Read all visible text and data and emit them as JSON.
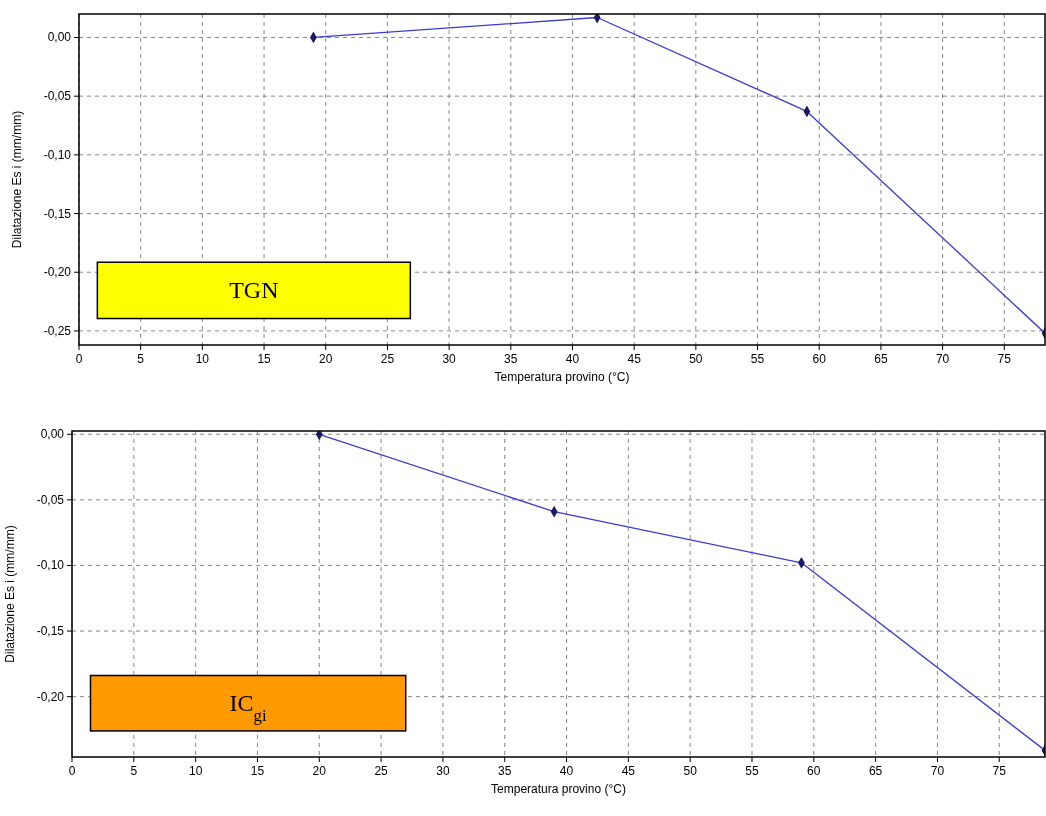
{
  "chart_data": [
    {
      "type": "line",
      "xlabel": "Temperatura provino (°C)",
      "ylabel": "Dilatazione Es i (mm/mm)",
      "annotations": [
        "TGN"
      ],
      "x": [
        19,
        42,
        59,
        78.3
      ],
      "series": [
        {
          "color": "#3a3ad0",
          "values": [
            0,
            0.017,
            -0.063,
            -0.252
          ]
        }
      ],
      "xlim": [
        0,
        78.3
      ],
      "ylim": [
        -0.262,
        0.02
      ],
      "xticks": [
        0,
        5,
        10,
        15,
        20,
        25,
        30,
        35,
        40,
        45,
        50,
        55,
        60,
        65,
        70,
        75
      ],
      "yticks": [
        {
          "value": 0,
          "label": "0,00"
        },
        {
          "value": -0.05,
          "label": "-0,05"
        },
        {
          "value": -0.1,
          "label": "-0,10"
        },
        {
          "value": -0.15,
          "label": "-0,15"
        },
        {
          "value": -0.2,
          "label": "-0,20"
        },
        {
          "value": -0.25,
          "label": "-0,25"
        }
      ],
      "grid": true,
      "marker": "diamond",
      "line_style": "solid"
    },
    {
      "type": "line",
      "xlabel": "Temperatura provino (°C)",
      "ylabel": "Dilatazione Es i (mm/mm)",
      "annotations": [
        "IC$_{gi}$"
      ],
      "x": [
        20,
        39,
        59,
        78.7
      ],
      "series": [
        {
          "color": "#3a3ad0",
          "values": [
            0,
            -0.059,
            -0.098,
            -0.241
          ]
        }
      ],
      "xlim": [
        0,
        78.7
      ],
      "ylim": [
        -0.246,
        0.0025
      ],
      "xticks": [
        0,
        5,
        10,
        15,
        20,
        25,
        30,
        35,
        40,
        45,
        50,
        55,
        60,
        65,
        70,
        75
      ],
      "yticks": [
        {
          "value": 0,
          "label": "0,00"
        },
        {
          "value": -0.05,
          "label": "-0,05"
        },
        {
          "value": -0.1,
          "label": "-0,10"
        },
        {
          "value": -0.15,
          "label": "-0,15"
        },
        {
          "value": -0.2,
          "label": "-0,20"
        }
      ],
      "grid": true,
      "marker": "diamond",
      "line_style": "solid"
    }
  ]
}
